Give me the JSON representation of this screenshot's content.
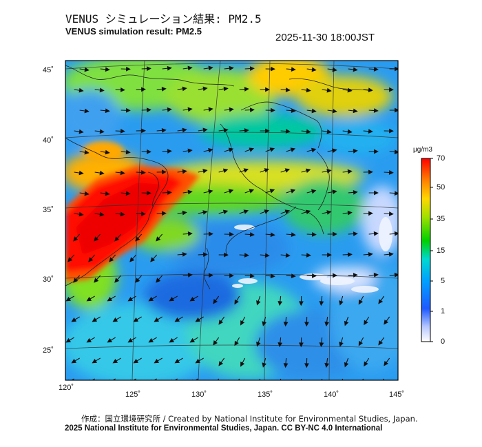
{
  "title_jp": "VENUS シミュレーション結果: PM2.5",
  "title_en": "VENUS simulation result: PM2.5",
  "timestamp": "2025-11-30 18:00JST",
  "map": {
    "lon_ticks": [
      "120˚",
      "125˚",
      "130˚",
      "135˚",
      "140˚",
      "145˚"
    ],
    "lat_ticks": [
      "45˚",
      "40˚",
      "35˚",
      "30˚",
      "25˚"
    ],
    "lon_range": [
      120,
      145
    ],
    "lat_range": [
      23,
      46
    ]
  },
  "colorbar": {
    "unit": "μg/m3",
    "ticks": [
      "70",
      "50",
      "35",
      "15",
      "5",
      "1",
      "0"
    ],
    "colors": [
      "#ff0000",
      "#ff8000",
      "#ffd700",
      "#00d000",
      "#00c8ff",
      "#1e5aff",
      "#ffffff"
    ]
  },
  "footer": {
    "line1": "作成：国立環境研究所 / Created by National Institute for Environmental Studies, Japan.",
    "line2": "2025 National Institute for Environmental Studies, Japan. CC BY-NC 4.0 International"
  }
}
